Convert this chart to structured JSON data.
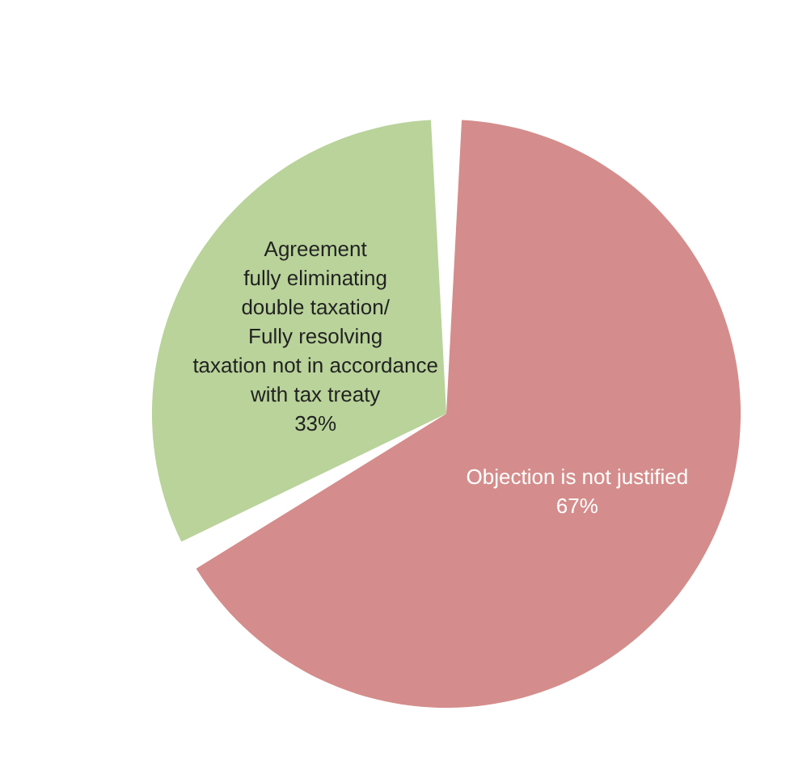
{
  "chart_data": {
    "type": "pie",
    "categories": [
      "Objection is not justified",
      "Agreement\nfully eliminating\ndouble taxation/\nFully resolving\ntaxation not in accordance\nwith tax treaty"
    ],
    "values": [
      67,
      33
    ],
    "colors": [
      "#d48d8c",
      "#b9d39a"
    ],
    "value_labels": [
      "67%",
      "33%"
    ],
    "legend": false
  }
}
